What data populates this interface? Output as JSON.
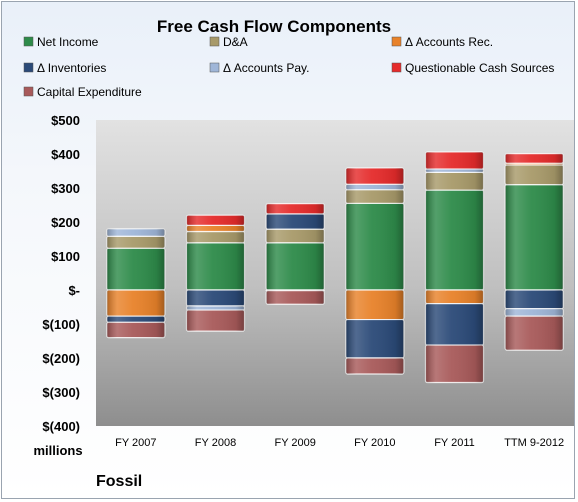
{
  "chart_data": {
    "type": "bar",
    "stacked": true,
    "title": "Free Cash Flow Components",
    "unit_label": "millions",
    "company": "Fossil",
    "categories": [
      "FY 2007",
      "FY 2008",
      "FY 2009",
      "FY 2010",
      "FY 2011",
      "TTM 9-2012"
    ],
    "ylim": [
      -400,
      500
    ],
    "yticks": [
      500,
      400,
      300,
      200,
      100,
      0,
      -100,
      -200,
      -300,
      -400
    ],
    "ytick_labels": [
      "$500",
      "$400",
      "$300",
      "$200",
      "$100",
      "$-",
      "$(100)",
      "$(200)",
      "$(300)",
      "$(400)"
    ],
    "grid": false,
    "legend_position": "top",
    "series": [
      {
        "name": "Net Income",
        "color": "#2e8b4a",
        "values": [
          123,
          139,
          139,
          255,
          294,
          310
        ]
      },
      {
        "name": "D&A",
        "color": "#a89a6a",
        "values": [
          35,
          33,
          40,
          40,
          52,
          58
        ]
      },
      {
        "name": "Δ Accounts Rec.",
        "color": "#e8822a",
        "values": [
          -77,
          18,
          -1,
          -87,
          -40,
          5
        ]
      },
      {
        "name": "Δ Inventories",
        "color": "#2b4a78",
        "values": [
          -18,
          -47,
          45,
          -113,
          -122,
          -55
        ]
      },
      {
        "name": "Δ Accounts Pay.",
        "color": "#9fb6d8",
        "values": [
          22,
          -12,
          -1,
          16,
          10,
          -22
        ]
      },
      {
        "name": "Questionable Cash Sources",
        "color": "#e52b2b",
        "values": [
          0,
          30,
          30,
          48,
          50,
          28
        ]
      },
      {
        "name": "Capital Expenditure",
        "color": "#a85a5a",
        "values": [
          -45,
          -62,
          -40,
          -47,
          -110,
          -100
        ]
      }
    ]
  }
}
